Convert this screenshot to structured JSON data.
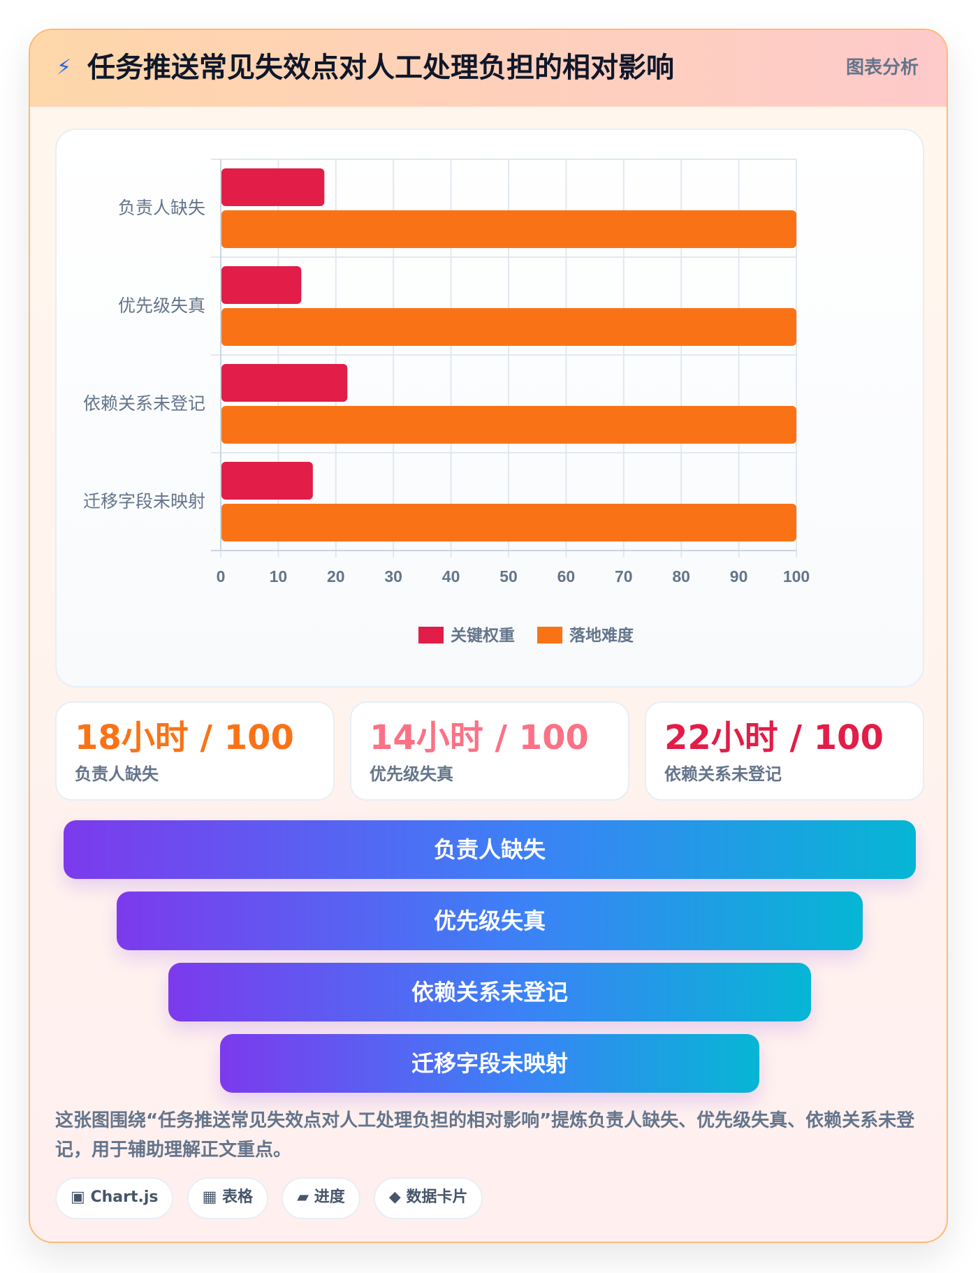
{
  "header": {
    "icon": "⚡",
    "title": "任务推送常见失效点对人工处理负担的相对影响",
    "tag": "图表分析"
  },
  "chart_data": {
    "type": "bar",
    "orientation": "horizontal",
    "categories": [
      "负责人缺失",
      "优先级失真",
      "依赖关系未登记",
      "迁移字段未映射"
    ],
    "series": [
      {
        "name": "关键权重",
        "values": [
          18,
          14,
          22,
          16
        ],
        "color": "#e11d48"
      },
      {
        "name": "落地难度",
        "values": [
          100,
          100,
          100,
          100
        ],
        "color": "#f97316"
      }
    ],
    "xlim": [
      0,
      100
    ],
    "xticks": [
      0,
      10,
      20,
      30,
      40,
      50,
      60,
      70,
      80,
      90,
      100
    ],
    "grid": true,
    "legend_position": "bottom"
  },
  "stats": [
    {
      "value": "18小时 / 100",
      "label": "负责人缺失",
      "color": "#f97316"
    },
    {
      "value": "14小时 / 100",
      "label": "优先级失真",
      "color": "#fb7185"
    },
    {
      "value": "22小时 / 100",
      "label": "依赖关系未登记",
      "color": "#e11d48"
    }
  ],
  "funnel": [
    "负责人缺失",
    "优先级失真",
    "依赖关系未登记",
    "迁移字段未映射"
  ],
  "summary": "这张图围绕“任务推送常见失效点对人工处理负担的相对影响”提炼负责人缺失、优先级失真、依赖关系未登记，用于辅助理解正文重点。",
  "chips": [
    {
      "icon": "▣",
      "label": "Chart.js"
    },
    {
      "icon": "▦",
      "label": "表格"
    },
    {
      "icon": "▰",
      "label": "进度"
    },
    {
      "icon": "◆",
      "label": "数据卡片"
    }
  ]
}
